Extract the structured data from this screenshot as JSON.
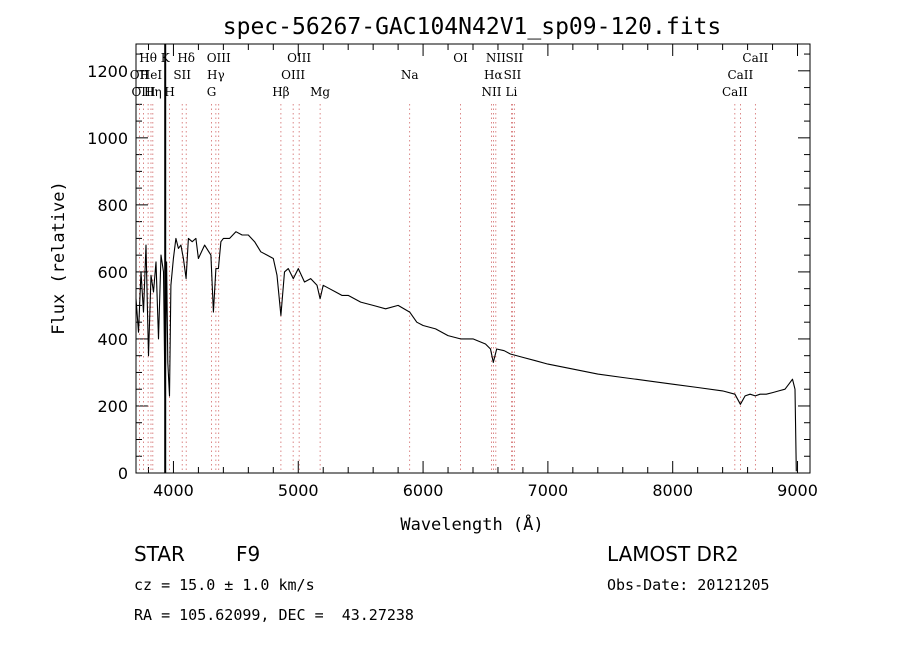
{
  "chart_data": {
    "type": "line",
    "title": "spec-56267-GAC104N42V1_sp09-120.fits",
    "xlabel": "Wavelength (Å)",
    "ylabel": "Flux (relative)",
    "xlim": [
      3700,
      9100
    ],
    "ylim": [
      0,
      1280
    ],
    "x_ticks": [
      4000,
      5000,
      6000,
      7000,
      8000,
      9000
    ],
    "y_ticks": [
      0,
      200,
      400,
      600,
      800,
      1000,
      1200
    ],
    "grid": false,
    "series": [
      {
        "x": [
          3700,
          3720,
          3740,
          3760,
          3780,
          3800,
          3820,
          3840,
          3860,
          3880,
          3900,
          3920,
          3933,
          3945,
          3955,
          3968,
          3980,
          4000,
          4020,
          4040,
          4060,
          4080,
          4101,
          4120,
          4150,
          4180,
          4200,
          4250,
          4300,
          4320,
          4340,
          4360,
          4380,
          4400,
          4450,
          4500,
          4550,
          4600,
          4650,
          4700,
          4750,
          4800,
          4830,
          4861,
          4890,
          4920,
          4960,
          5000,
          5050,
          5100,
          5150,
          5175,
          5200,
          5250,
          5300,
          5350,
          5400,
          5500,
          5600,
          5700,
          5800,
          5893,
          5950,
          6000,
          6100,
          6200,
          6300,
          6400,
          6500,
          6540,
          6563,
          6590,
          6650,
          6700,
          6800,
          6900,
          7000,
          7200,
          7400,
          7600,
          7800,
          8000,
          8200,
          8400,
          8498,
          8542,
          8580,
          8620,
          8662,
          8700,
          8750,
          8800,
          8850,
          8900,
          8930,
          8960,
          8980,
          8990
        ],
        "y": [
          520,
          420,
          600,
          480,
          680,
          350,
          590,
          540,
          630,
          400,
          650,
          600,
          210,
          630,
          330,
          230,
          560,
          640,
          700,
          670,
          680,
          640,
          580,
          700,
          690,
          700,
          640,
          680,
          650,
          480,
          610,
          610,
          690,
          700,
          700,
          720,
          710,
          710,
          690,
          660,
          650,
          640,
          590,
          470,
          600,
          610,
          580,
          610,
          570,
          580,
          560,
          520,
          560,
          550,
          540,
          530,
          530,
          510,
          500,
          490,
          500,
          480,
          450,
          440,
          430,
          410,
          400,
          400,
          385,
          370,
          330,
          370,
          365,
          355,
          345,
          335,
          325,
          310,
          295,
          285,
          275,
          265,
          255,
          245,
          235,
          205,
          230,
          235,
          230,
          235,
          235,
          240,
          245,
          250,
          265,
          280,
          250,
          5
        ]
      }
    ],
    "lines": [
      {
        "label": "Hθ",
        "x": 3797,
        "row": 1,
        "kind": "dotted"
      },
      {
        "label": "OII",
        "x": 3727,
        "row": 2,
        "kind": "dotted"
      },
      {
        "label": "OIII",
        "x": 3760,
        "row": 3,
        "kind": "dotted"
      },
      {
        "label": "HeI",
        "x": 3820,
        "row": 2,
        "kind": "dotted"
      },
      {
        "label": "Hη",
        "x": 3835,
        "row": 3,
        "kind": "dotted"
      },
      {
        "label": "K",
        "x": 3934,
        "row": 1,
        "kind": "dotted"
      },
      {
        "label": "SII",
        "x": 4070,
        "row": 2,
        "kind": "dotted"
      },
      {
        "label": "H",
        "x": 3969,
        "row": 3,
        "kind": "dotted"
      },
      {
        "label": "Hδ",
        "x": 4102,
        "row": 1,
        "kind": "dotted"
      },
      {
        "label": "OIII",
        "x": 4363,
        "row": 1,
        "kind": "dotted"
      },
      {
        "label": "Hγ",
        "x": 4340,
        "row": 2,
        "kind": "dotted"
      },
      {
        "label": "G",
        "x": 4305,
        "row": 3,
        "kind": "dotted"
      },
      {
        "label": "Hβ",
        "x": 4861,
        "row": 3,
        "kind": "dotted"
      },
      {
        "label": "OIII",
        "x": 5007,
        "row": 1,
        "kind": "dotted"
      },
      {
        "label": "OIII",
        "x": 4959,
        "row": 2,
        "kind": "dotted"
      },
      {
        "label": "Mg",
        "x": 5175,
        "row": 3,
        "kind": "dotted"
      },
      {
        "label": "Na",
        "x": 5893,
        "row": 2,
        "kind": "dotted"
      },
      {
        "label": "OI",
        "x": 6300,
        "row": 1,
        "kind": "dotted"
      },
      {
        "label": "NII",
        "x": 6583,
        "row": 1,
        "kind": "dotted"
      },
      {
        "label": "Hα",
        "x": 6563,
        "row": 2,
        "kind": "dotted"
      },
      {
        "label": "NII",
        "x": 6548,
        "row": 3,
        "kind": "dotted"
      },
      {
        "label": "SII",
        "x": 6731,
        "row": 1,
        "kind": "dotted"
      },
      {
        "label": "SII",
        "x": 6716,
        "row": 2,
        "kind": "dotted"
      },
      {
        "label": "Li",
        "x": 6708,
        "row": 3,
        "kind": "dotted"
      },
      {
        "label": "CaII",
        "x": 8662,
        "row": 1,
        "kind": "dotted"
      },
      {
        "label": "CaII",
        "x": 8542,
        "row": 2,
        "kind": "dotted"
      },
      {
        "label": "CaII",
        "x": 8498,
        "row": 3,
        "kind": "dotted"
      }
    ],
    "marker_x": 3934
  },
  "info": {
    "object_class": "STAR",
    "subclass": "F9",
    "survey": "LAMOST DR2",
    "cz": "cz = 15.0 ± 1.0 km/s",
    "obs_date": "Obs-Date: 20121205",
    "coords": "RA = 105.62099, DEC =  43.27238"
  }
}
